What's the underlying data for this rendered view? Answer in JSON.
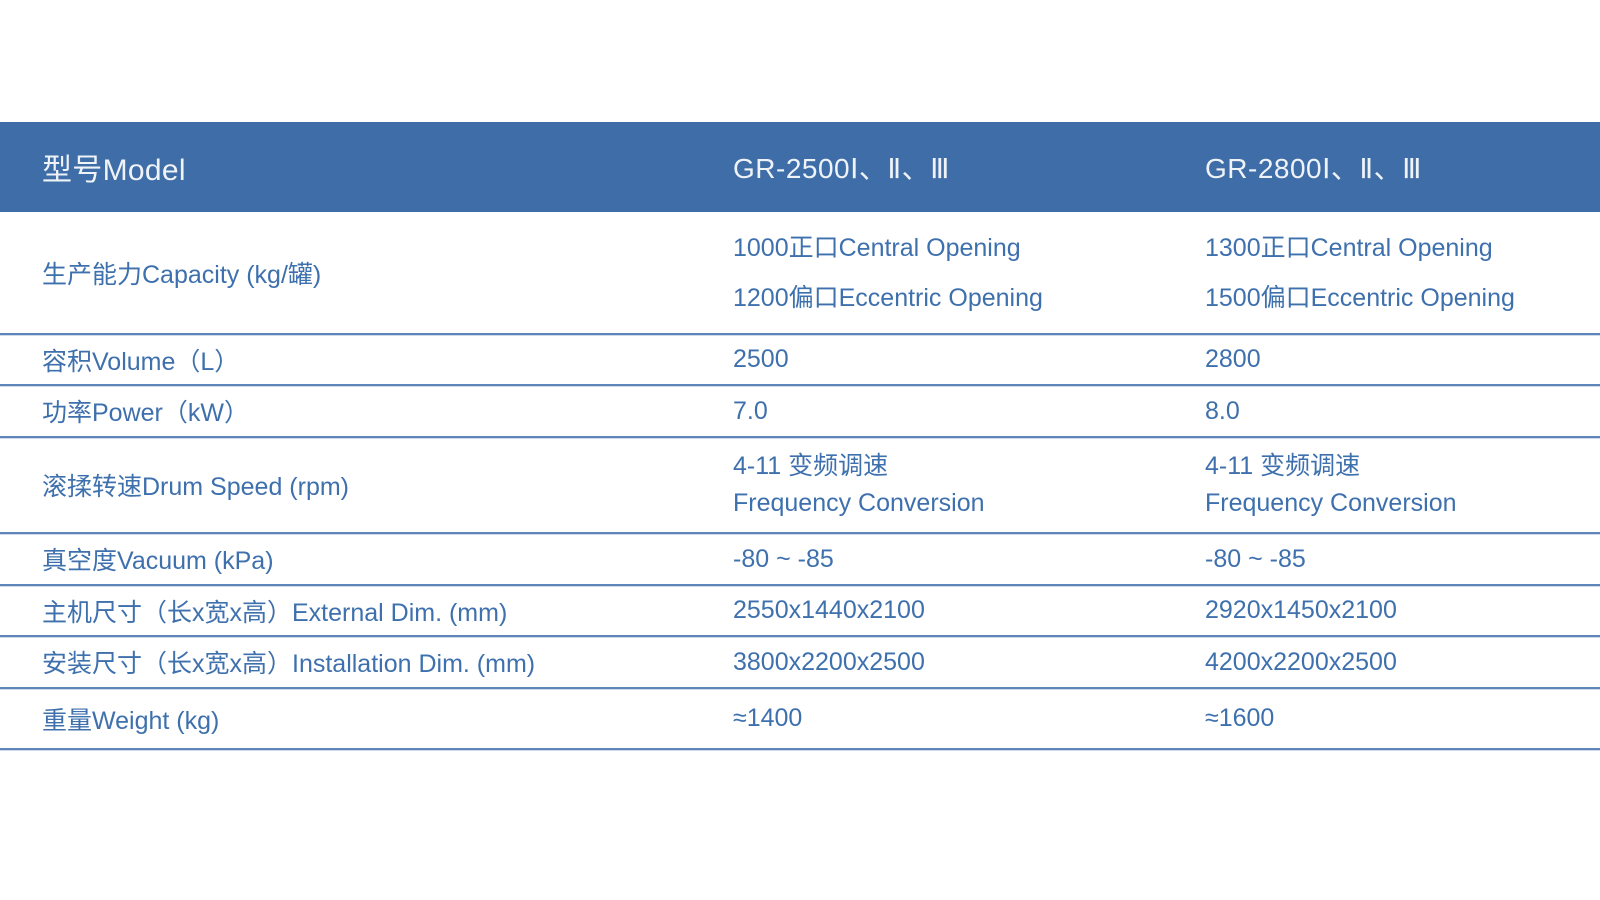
{
  "table": {
    "header": {
      "model_label": "型号Model",
      "columns": [
        "GR-2500Ⅰ、Ⅱ、Ⅲ",
        "GR-2800Ⅰ、Ⅱ、Ⅲ"
      ]
    },
    "rows": [
      {
        "label": "生产能力Capacity (kg/罐)",
        "col1": [
          "1000正口Central Opening",
          "1200偏口Eccentric Opening"
        ],
        "col2": [
          "1300正口Central Opening",
          "1500偏口Eccentric Opening"
        ]
      },
      {
        "label": "容积Volume（L）",
        "col1": "2500",
        "col2": "2800"
      },
      {
        "label": "功率Power（kW）",
        "col1": "7.0",
        "col2": "8.0"
      },
      {
        "label": "滚揉转速Drum Speed (rpm)",
        "col1": [
          "4-11 变频调速",
          "Frequency Conversion"
        ],
        "col2": [
          "4-11 变频调速",
          "Frequency Conversion"
        ]
      },
      {
        "label": "真空度Vacuum (kPa)",
        "col1": "-80 ~ -85",
        "col2": "-80 ~ -85"
      },
      {
        "label": "主机尺寸（长x宽x高）External Dim. (mm)",
        "col1": "2550x1440x2100",
        "col2": "2920x1450x2100"
      },
      {
        "label": "安装尺寸（长x宽x高）Installation Dim. (mm)",
        "col1": "3800x2200x2500",
        "col2": "4200x2200x2500"
      },
      {
        "label": "重量Weight (kg)",
        "col1": "≈1400",
        "col2": "≈1600"
      }
    ],
    "colors": {
      "header_bg": "#3E6DA7",
      "header_text": "#EFF3F8",
      "body_text": "#3E70AD",
      "divider": "#5E86B8"
    }
  }
}
